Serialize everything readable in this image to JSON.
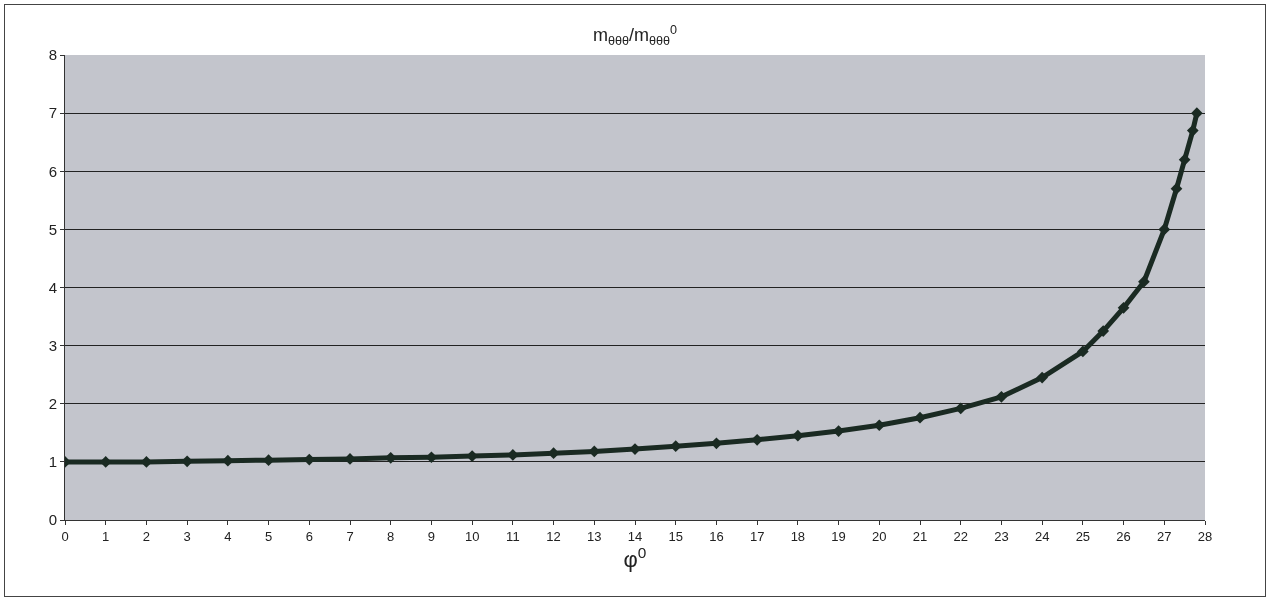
{
  "chart_data": {
    "type": "line",
    "title": "m$_{θθθ}$/m$_{θθθ}$$^{0}$",
    "xlabel": "φ$^{0}$",
    "x": [
      0,
      1,
      2,
      3,
      4,
      5,
      6,
      7,
      8,
      9,
      10,
      11,
      12,
      13,
      14,
      15,
      16,
      17,
      18,
      19,
      20,
      21,
      22,
      23,
      24,
      25,
      25.5,
      26,
      26.5,
      27,
      27.3,
      27.5,
      27.7,
      27.8
    ],
    "series": [
      {
        "color": "#1a2a22",
        "values": [
          1.0,
          1.0,
          1.0,
          1.01,
          1.02,
          1.03,
          1.04,
          1.05,
          1.07,
          1.08,
          1.1,
          1.12,
          1.15,
          1.18,
          1.22,
          1.27,
          1.32,
          1.38,
          1.45,
          1.53,
          1.63,
          1.76,
          1.92,
          2.12,
          2.45,
          2.9,
          3.25,
          3.65,
          4.1,
          5.0,
          5.7,
          6.2,
          6.7,
          7.0
        ]
      }
    ],
    "xlim": [
      0,
      28
    ],
    "xticks": [
      0,
      1,
      2,
      3,
      4,
      5,
      6,
      7,
      8,
      9,
      10,
      11,
      12,
      13,
      14,
      15,
      16,
      17,
      18,
      19,
      20,
      21,
      22,
      23,
      24,
      25,
      26,
      27,
      28
    ],
    "ylim": [
      0,
      8
    ],
    "yticks": [
      0,
      1,
      2,
      3,
      4,
      5,
      6,
      7,
      8
    ],
    "grid": "y",
    "marker": "diamond",
    "line_style": "solid"
  }
}
